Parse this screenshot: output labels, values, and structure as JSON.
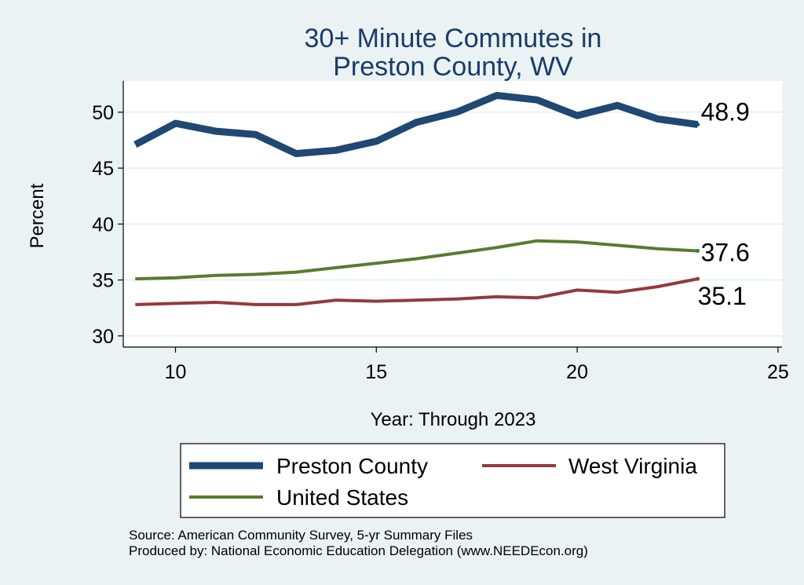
{
  "chart_data": {
    "type": "line",
    "title": [
      "30+ Minute Commutes in",
      "Preston County, WV"
    ],
    "xlabel": "Year: Through 2023",
    "ylabel": "Percent",
    "xlim": [
      8.7,
      25.1
    ],
    "ylim": [
      29.0,
      52.8
    ],
    "xticks": [
      10,
      15,
      20,
      25
    ],
    "yticks": [
      30,
      35,
      40,
      45,
      50
    ],
    "x": [
      9,
      10,
      11,
      12,
      13,
      14,
      15,
      16,
      17,
      18,
      19,
      20,
      21,
      22,
      23
    ],
    "series": [
      {
        "name": "Preston County",
        "color": "#1f4873",
        "values": [
          47.1,
          49.0,
          48.3,
          48.0,
          46.3,
          46.6,
          47.4,
          49.1,
          50.0,
          51.5,
          51.1,
          49.7,
          50.6,
          49.4,
          48.9
        ],
        "end_label": "48.9"
      },
      {
        "name": "West Virginia",
        "color": "#933a3f",
        "values": [
          32.8,
          32.9,
          33.0,
          32.8,
          32.8,
          33.2,
          33.1,
          33.2,
          33.3,
          33.5,
          33.4,
          34.1,
          33.9,
          34.4,
          35.1
        ],
        "end_label": "35.1"
      },
      {
        "name": "United States",
        "color": "#5a7a31",
        "values": [
          35.1,
          35.2,
          35.4,
          35.5,
          35.7,
          36.1,
          36.5,
          36.9,
          37.4,
          37.9,
          38.5,
          38.4,
          38.1,
          37.8,
          37.6
        ],
        "end_label": "37.6"
      }
    ],
    "legend_position": "bottom"
  },
  "footer": {
    "source": "Source: American Community Survey, 5-yr Summary Files",
    "producer": "Produced by: National Economic Education Delegation (www.NEEDEcon.org)"
  }
}
